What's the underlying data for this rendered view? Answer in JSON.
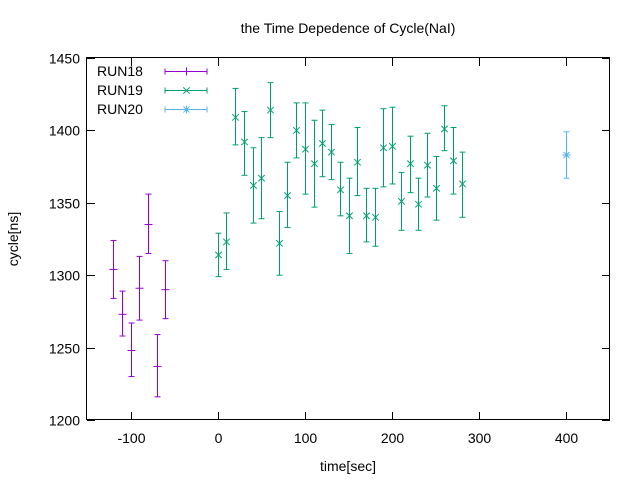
{
  "chart_data": {
    "type": "scatter",
    "title": "the Time Depedence of Cycle(NaI)",
    "xlabel": "time[sec]",
    "ylabel": "cycle[ns]",
    "xlim": [
      -150,
      450
    ],
    "ylim": [
      1200,
      1450
    ],
    "xticks": [
      -100,
      0,
      100,
      200,
      300,
      400
    ],
    "yticks": [
      1200,
      1250,
      1300,
      1350,
      1400,
      1450
    ],
    "xtick_labels": [
      "-100",
      "0",
      "100",
      "200",
      "300",
      "400"
    ],
    "ytick_labels": [
      "1200",
      "1250",
      "1300",
      "1350",
      "1400",
      "1450"
    ],
    "grid": false,
    "legend_position": "top-left",
    "series": [
      {
        "name": "RUN18",
        "color": "#9400d3",
        "marker": "plus",
        "points": [
          {
            "x": -120,
            "y": 1304,
            "lo": 1284,
            "hi": 1324
          },
          {
            "x": -110,
            "y": 1273,
            "lo": 1258,
            "hi": 1289
          },
          {
            "x": -100,
            "y": 1248,
            "lo": 1230,
            "hi": 1267
          },
          {
            "x": -90,
            "y": 1291,
            "lo": 1269,
            "hi": 1313
          },
          {
            "x": -80,
            "y": 1335,
            "lo": 1315,
            "hi": 1356
          },
          {
            "x": -70,
            "y": 1237,
            "lo": 1216,
            "hi": 1259
          },
          {
            "x": -60,
            "y": 1290,
            "lo": 1270,
            "hi": 1310
          }
        ]
      },
      {
        "name": "RUN19",
        "color": "#009e73",
        "marker": "cross",
        "points": [
          {
            "x": 0,
            "y": 1314,
            "lo": 1299,
            "hi": 1329
          },
          {
            "x": 10,
            "y": 1323,
            "lo": 1304,
            "hi": 1343
          },
          {
            "x": 20,
            "y": 1409,
            "lo": 1390,
            "hi": 1429
          },
          {
            "x": 30,
            "y": 1392,
            "lo": 1369,
            "hi": 1413
          },
          {
            "x": 40,
            "y": 1362,
            "lo": 1336,
            "hi": 1388
          },
          {
            "x": 50,
            "y": 1367,
            "lo": 1339,
            "hi": 1395
          },
          {
            "x": 60,
            "y": 1414,
            "lo": 1395,
            "hi": 1433
          },
          {
            "x": 70,
            "y": 1322,
            "lo": 1300,
            "hi": 1344
          },
          {
            "x": 80,
            "y": 1355,
            "lo": 1333,
            "hi": 1378
          },
          {
            "x": 90,
            "y": 1400,
            "lo": 1381,
            "hi": 1419
          },
          {
            "x": 100,
            "y": 1387,
            "lo": 1356,
            "hi": 1419
          },
          {
            "x": 110,
            "y": 1377,
            "lo": 1347,
            "hi": 1407
          },
          {
            "x": 120,
            "y": 1391,
            "lo": 1368,
            "hi": 1414
          },
          {
            "x": 130,
            "y": 1385,
            "lo": 1366,
            "hi": 1404
          },
          {
            "x": 140,
            "y": 1359,
            "lo": 1341,
            "hi": 1378
          },
          {
            "x": 150,
            "y": 1341,
            "lo": 1315,
            "hi": 1367
          },
          {
            "x": 160,
            "y": 1378,
            "lo": 1355,
            "hi": 1402
          },
          {
            "x": 170,
            "y": 1341,
            "lo": 1323,
            "hi": 1360
          },
          {
            "x": 180,
            "y": 1340,
            "lo": 1320,
            "hi": 1360
          },
          {
            "x": 190,
            "y": 1388,
            "lo": 1361,
            "hi": 1415
          },
          {
            "x": 200,
            "y": 1389,
            "lo": 1363,
            "hi": 1416
          },
          {
            "x": 210,
            "y": 1351,
            "lo": 1331,
            "hi": 1371
          },
          {
            "x": 220,
            "y": 1377,
            "lo": 1357,
            "hi": 1396
          },
          {
            "x": 230,
            "y": 1349,
            "lo": 1331,
            "hi": 1367
          },
          {
            "x": 240,
            "y": 1376,
            "lo": 1354,
            "hi": 1398
          },
          {
            "x": 250,
            "y": 1360,
            "lo": 1338,
            "hi": 1382
          },
          {
            "x": 260,
            "y": 1401,
            "lo": 1386,
            "hi": 1417
          },
          {
            "x": 270,
            "y": 1379,
            "lo": 1356,
            "hi": 1402
          },
          {
            "x": 280,
            "y": 1363,
            "lo": 1340,
            "hi": 1385
          }
        ]
      },
      {
        "name": "RUN20",
        "color": "#56b4e9",
        "marker": "star",
        "points": [
          {
            "x": 400,
            "y": 1383,
            "lo": 1367,
            "hi": 1399
          }
        ]
      }
    ]
  }
}
